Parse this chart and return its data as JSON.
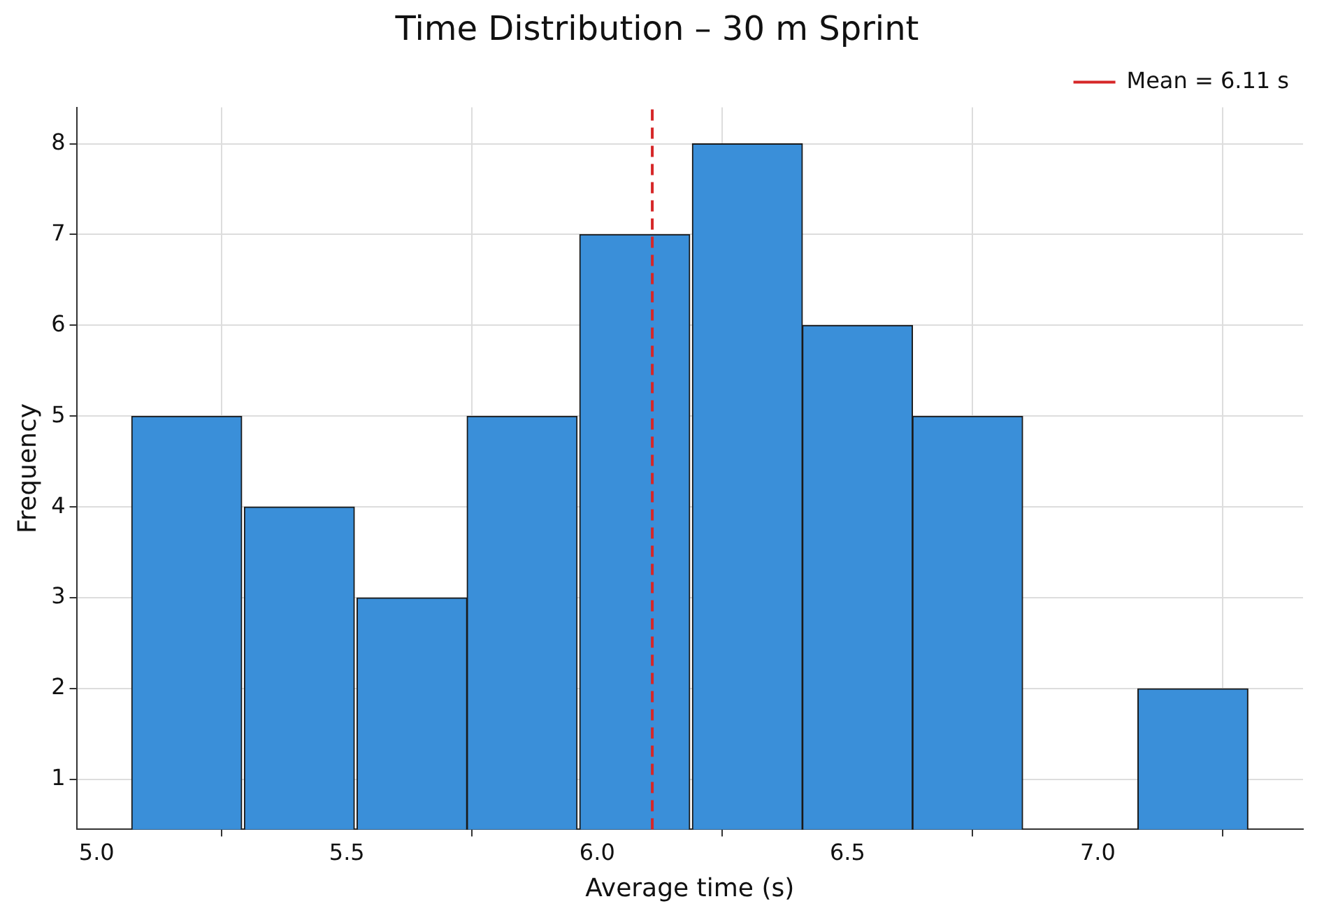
{
  "chart_data": {
    "type": "histogram",
    "title": "Time Distribution – 30 m Sprint",
    "xlabel": "Average time (s)",
    "ylabel": "Frequency",
    "bins": [
      5.07,
      5.29,
      5.52,
      5.74,
      5.96,
      6.19,
      6.41,
      6.63,
      6.85,
      7.08,
      7.3
    ],
    "values": [
      5,
      4,
      3,
      5,
      7,
      8,
      6,
      5,
      null,
      2
    ],
    "color": "#3a8fd9",
    "xlim": [
      4.96,
      7.41
    ],
    "xticks": [
      {
        "value": 5,
        "label": "5.0"
      },
      5.5,
      {
        "value": 6,
        "label": "6.0"
      },
      6.5,
      {
        "value": 7,
        "label": "7.0"
      }
    ],
    "ylim": [
      0.45,
      8.4
    ],
    "yticks": [
      1,
      2,
      3,
      4,
      5,
      6,
      7,
      8
    ],
    "ref_lines": [
      {
        "axis": "x",
        "value": 6.11,
        "label": "Mean = 6.11 s",
        "color": "#d62728",
        "line_style": "dashed"
      }
    ],
    "grid": true,
    "legend": "top right"
  }
}
